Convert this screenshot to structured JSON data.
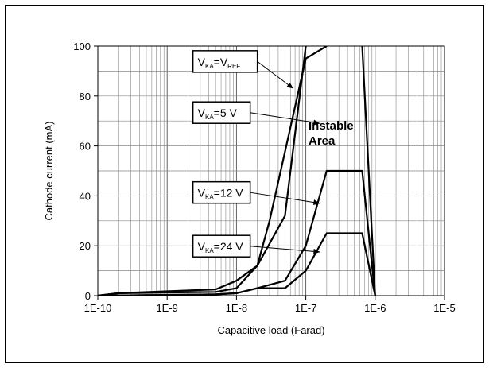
{
  "chart_data": {
    "type": "line",
    "x_scale": "log",
    "xlabel": "Capacitive load (Farad)",
    "ylabel": "Cathode current (mA)",
    "xlim": [
      1e-10,
      1e-05
    ],
    "ylim": [
      0,
      100
    ],
    "x_ticks": [
      "1E-10",
      "1E-9",
      "1E-8",
      "1E-7",
      "1E-6",
      "1E-5"
    ],
    "y_ticks": [
      "0",
      "20",
      "40",
      "60",
      "80",
      "100"
    ],
    "grid": true,
    "curves": [
      {
        "x": [
          1e-10,
          2e-10,
          5e-09,
          1e-08,
          2e-08,
          3e-08,
          1e-07,
          2e-07
        ],
        "y": [
          0,
          1,
          2.5,
          6,
          12,
          30,
          95,
          100
        ]
      },
      {
        "x": [
          1e-10,
          2e-10,
          5e-09,
          1e-08,
          2e-08,
          5e-08,
          1e-07
        ],
        "y": [
          0,
          1,
          1.5,
          3,
          12,
          32,
          100
        ]
      },
      {
        "x": [
          1e-10,
          5e-09,
          1e-08,
          2e-08,
          5e-08,
          1e-07,
          2e-07,
          6.5e-07,
          1e-06
        ],
        "y": [
          0,
          0.5,
          1,
          3,
          6,
          20,
          50,
          50,
          0
        ]
      },
      {
        "x": [
          1e-10,
          5e-09,
          1e-08,
          2e-08,
          5e-08,
          1e-07,
          2e-07,
          6.5e-07,
          1e-06
        ],
        "y": [
          0,
          0.5,
          1,
          3,
          3,
          10,
          25,
          25,
          0
        ]
      }
    ],
    "instable_boundary": {
      "x": [
        6.5e-07,
        1e-06
      ],
      "y": [
        100,
        0
      ]
    },
    "annotations": [
      {
        "id": "ref",
        "base": "V",
        "sub": "KA",
        "mid": "=V",
        "sub2": "REF",
        "tail": "",
        "x": 2e-08,
        "y": 94,
        "target_x": 6.6e-08,
        "target_y": 83
      },
      {
        "id": "v5",
        "base": "V",
        "sub": "KA",
        "mid": "=5 V",
        "sub2": "",
        "tail": "",
        "x": 2e-08,
        "y": 73.5,
        "target_x": 1.6e-07,
        "target_y": 69
      },
      {
        "id": "v12",
        "base": "V",
        "sub": "KA",
        "mid": "=12 V",
        "sub2": "",
        "tail": "",
        "x": 2e-08,
        "y": 41.5,
        "target_x": 1.6e-07,
        "target_y": 37
      },
      {
        "id": "v24",
        "base": "V",
        "sub": "KA",
        "mid": "=24 V",
        "sub2": "",
        "tail": "",
        "x": 2e-08,
        "y": 20,
        "target_x": 1.6e-07,
        "target_y": 17.5
      }
    ],
    "region_label": [
      "Instable",
      "Area"
    ]
  }
}
